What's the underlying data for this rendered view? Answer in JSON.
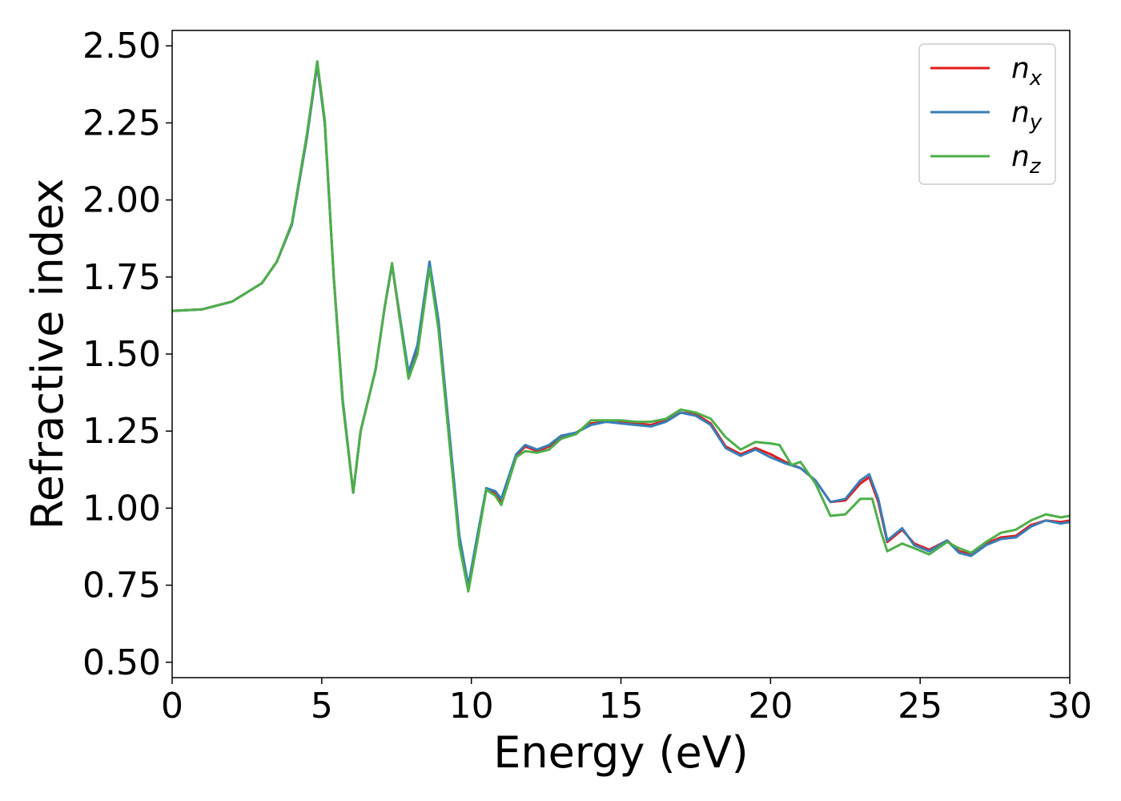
{
  "chart_data": {
    "type": "line",
    "title": "",
    "xlabel": "Energy (eV)",
    "ylabel": "Refractive index",
    "xlim": [
      0,
      30
    ],
    "ylim": [
      0.45,
      2.55
    ],
    "xticks": [
      0,
      5,
      10,
      15,
      20,
      25,
      30
    ],
    "xtick_labels": [
      "0",
      "5",
      "10",
      "15",
      "20",
      "25",
      "30"
    ],
    "yticks": [
      0.5,
      0.75,
      1.0,
      1.25,
      1.5,
      1.75,
      2.0,
      2.25,
      2.5
    ],
    "ytick_labels": [
      "0.50",
      "0.75",
      "1.00",
      "1.25",
      "1.50",
      "1.75",
      "2.00",
      "2.25",
      "2.50"
    ],
    "grid": false,
    "legend_position": "top-right",
    "series": [
      {
        "name": "n_x",
        "label_main": "n",
        "label_sub": "x",
        "color": "#e41a1c",
        "points": [
          [
            0,
            1.64
          ],
          [
            1,
            1.645
          ],
          [
            2,
            1.67
          ],
          [
            3,
            1.73
          ],
          [
            3.5,
            1.8
          ],
          [
            4,
            1.92
          ],
          [
            4.5,
            2.2
          ],
          [
            4.85,
            2.44
          ],
          [
            5.1,
            2.25
          ],
          [
            5.4,
            1.75
          ],
          [
            5.7,
            1.35
          ],
          [
            6.05,
            1.05
          ],
          [
            6.3,
            1.25
          ],
          [
            6.8,
            1.45
          ],
          [
            7.1,
            1.65
          ],
          [
            7.35,
            1.79
          ],
          [
            7.6,
            1.62
          ],
          [
            7.9,
            1.44
          ],
          [
            8.2,
            1.52
          ],
          [
            8.6,
            1.79
          ],
          [
            8.9,
            1.6
          ],
          [
            9.3,
            1.2
          ],
          [
            9.6,
            0.9
          ],
          [
            9.9,
            0.745
          ],
          [
            10.2,
            0.9
          ],
          [
            10.5,
            1.06
          ],
          [
            10.8,
            1.05
          ],
          [
            11.0,
            1.02
          ],
          [
            11.5,
            1.17
          ],
          [
            11.8,
            1.2
          ],
          [
            12.2,
            1.185
          ],
          [
            12.6,
            1.2
          ],
          [
            13.0,
            1.23
          ],
          [
            13.5,
            1.245
          ],
          [
            14.0,
            1.275
          ],
          [
            14.5,
            1.28
          ],
          [
            15.0,
            1.28
          ],
          [
            15.5,
            1.275
          ],
          [
            16.0,
            1.27
          ],
          [
            16.5,
            1.285
          ],
          [
            17.0,
            1.31
          ],
          [
            17.5,
            1.305
          ],
          [
            18.0,
            1.275
          ],
          [
            18.5,
            1.2
          ],
          [
            19.0,
            1.175
          ],
          [
            19.5,
            1.195
          ],
          [
            20.0,
            1.175
          ],
          [
            20.5,
            1.15
          ],
          [
            21.0,
            1.13
          ],
          [
            21.5,
            1.09
          ],
          [
            22.0,
            1.02
          ],
          [
            22.5,
            1.025
          ],
          [
            23.0,
            1.08
          ],
          [
            23.3,
            1.1
          ],
          [
            23.6,
            1.02
          ],
          [
            23.9,
            0.89
          ],
          [
            24.4,
            0.93
          ],
          [
            24.8,
            0.885
          ],
          [
            25.3,
            0.865
          ],
          [
            25.9,
            0.895
          ],
          [
            26.3,
            0.86
          ],
          [
            26.7,
            0.85
          ],
          [
            27.2,
            0.885
          ],
          [
            27.7,
            0.905
          ],
          [
            28.2,
            0.91
          ],
          [
            28.7,
            0.945
          ],
          [
            29.2,
            0.96
          ],
          [
            29.7,
            0.955
          ],
          [
            30,
            0.96
          ]
        ]
      },
      {
        "name": "n_y",
        "label_main": "n",
        "label_sub": "y",
        "color": "#377eb8",
        "points": [
          [
            0,
            1.64
          ],
          [
            1,
            1.645
          ],
          [
            2,
            1.67
          ],
          [
            3,
            1.73
          ],
          [
            3.5,
            1.8
          ],
          [
            4,
            1.92
          ],
          [
            4.5,
            2.2
          ],
          [
            4.85,
            2.44
          ],
          [
            5.1,
            2.25
          ],
          [
            5.4,
            1.75
          ],
          [
            5.7,
            1.35
          ],
          [
            6.05,
            1.05
          ],
          [
            6.3,
            1.25
          ],
          [
            6.8,
            1.45
          ],
          [
            7.1,
            1.65
          ],
          [
            7.35,
            1.79
          ],
          [
            7.6,
            1.63
          ],
          [
            7.9,
            1.44
          ],
          [
            8.2,
            1.53
          ],
          [
            8.6,
            1.8
          ],
          [
            8.9,
            1.61
          ],
          [
            9.3,
            1.21
          ],
          [
            9.6,
            0.91
          ],
          [
            9.9,
            0.75
          ],
          [
            10.2,
            0.91
          ],
          [
            10.5,
            1.065
          ],
          [
            10.8,
            1.055
          ],
          [
            11.0,
            1.03
          ],
          [
            11.5,
            1.175
          ],
          [
            11.8,
            1.205
          ],
          [
            12.2,
            1.19
          ],
          [
            12.6,
            1.205
          ],
          [
            13.0,
            1.235
          ],
          [
            13.5,
            1.245
          ],
          [
            14.0,
            1.27
          ],
          [
            14.5,
            1.28
          ],
          [
            15.0,
            1.275
          ],
          [
            15.5,
            1.27
          ],
          [
            16.0,
            1.265
          ],
          [
            16.5,
            1.28
          ],
          [
            17.0,
            1.31
          ],
          [
            17.5,
            1.3
          ],
          [
            18.0,
            1.27
          ],
          [
            18.5,
            1.195
          ],
          [
            19.0,
            1.17
          ],
          [
            19.5,
            1.19
          ],
          [
            20.0,
            1.165
          ],
          [
            20.5,
            1.145
          ],
          [
            21.0,
            1.13
          ],
          [
            21.5,
            1.09
          ],
          [
            22.0,
            1.02
          ],
          [
            22.5,
            1.03
          ],
          [
            23.0,
            1.09
          ],
          [
            23.3,
            1.11
          ],
          [
            23.6,
            1.03
          ],
          [
            23.9,
            0.895
          ],
          [
            24.4,
            0.935
          ],
          [
            24.8,
            0.88
          ],
          [
            25.3,
            0.86
          ],
          [
            25.9,
            0.895
          ],
          [
            26.3,
            0.855
          ],
          [
            26.7,
            0.845
          ],
          [
            27.2,
            0.88
          ],
          [
            27.7,
            0.9
          ],
          [
            28.2,
            0.905
          ],
          [
            28.7,
            0.94
          ],
          [
            29.2,
            0.96
          ],
          [
            29.7,
            0.95
          ],
          [
            30,
            0.955
          ]
        ]
      },
      {
        "name": "n_z",
        "label_main": "n",
        "label_sub": "z",
        "color": "#4daf4a",
        "points": [
          [
            0,
            1.64
          ],
          [
            1,
            1.645
          ],
          [
            2,
            1.67
          ],
          [
            3,
            1.73
          ],
          [
            3.5,
            1.8
          ],
          [
            4,
            1.925
          ],
          [
            4.5,
            2.21
          ],
          [
            4.85,
            2.45
          ],
          [
            5.1,
            2.26
          ],
          [
            5.4,
            1.75
          ],
          [
            5.7,
            1.34
          ],
          [
            6.05,
            1.05
          ],
          [
            6.3,
            1.25
          ],
          [
            6.8,
            1.45
          ],
          [
            7.1,
            1.65
          ],
          [
            7.35,
            1.795
          ],
          [
            7.6,
            1.62
          ],
          [
            7.9,
            1.42
          ],
          [
            8.2,
            1.5
          ],
          [
            8.6,
            1.78
          ],
          [
            8.9,
            1.58
          ],
          [
            9.3,
            1.18
          ],
          [
            9.6,
            0.88
          ],
          [
            9.9,
            0.73
          ],
          [
            10.2,
            0.89
          ],
          [
            10.5,
            1.06
          ],
          [
            10.8,
            1.04
          ],
          [
            11.0,
            1.01
          ],
          [
            11.5,
            1.165
          ],
          [
            11.8,
            1.185
          ],
          [
            12.2,
            1.18
          ],
          [
            12.6,
            1.19
          ],
          [
            13.0,
            1.225
          ],
          [
            13.5,
            1.24
          ],
          [
            14.0,
            1.285
          ],
          [
            14.5,
            1.285
          ],
          [
            15.0,
            1.285
          ],
          [
            15.5,
            1.28
          ],
          [
            16.0,
            1.28
          ],
          [
            16.5,
            1.29
          ],
          [
            17.0,
            1.32
          ],
          [
            17.5,
            1.31
          ],
          [
            18.0,
            1.29
          ],
          [
            18.5,
            1.23
          ],
          [
            19.0,
            1.19
          ],
          [
            19.5,
            1.215
          ],
          [
            20.0,
            1.21
          ],
          [
            20.3,
            1.205
          ],
          [
            20.7,
            1.14
          ],
          [
            21.0,
            1.15
          ],
          [
            21.5,
            1.08
          ],
          [
            22.0,
            0.975
          ],
          [
            22.5,
            0.98
          ],
          [
            23.0,
            1.03
          ],
          [
            23.4,
            1.03
          ],
          [
            23.7,
            0.92
          ],
          [
            23.9,
            0.86
          ],
          [
            24.4,
            0.885
          ],
          [
            24.8,
            0.87
          ],
          [
            25.3,
            0.85
          ],
          [
            25.9,
            0.89
          ],
          [
            26.3,
            0.87
          ],
          [
            26.7,
            0.855
          ],
          [
            27.2,
            0.89
          ],
          [
            27.7,
            0.92
          ],
          [
            28.2,
            0.93
          ],
          [
            28.7,
            0.96
          ],
          [
            29.2,
            0.98
          ],
          [
            29.7,
            0.97
          ],
          [
            30,
            0.975
          ]
        ]
      }
    ]
  }
}
